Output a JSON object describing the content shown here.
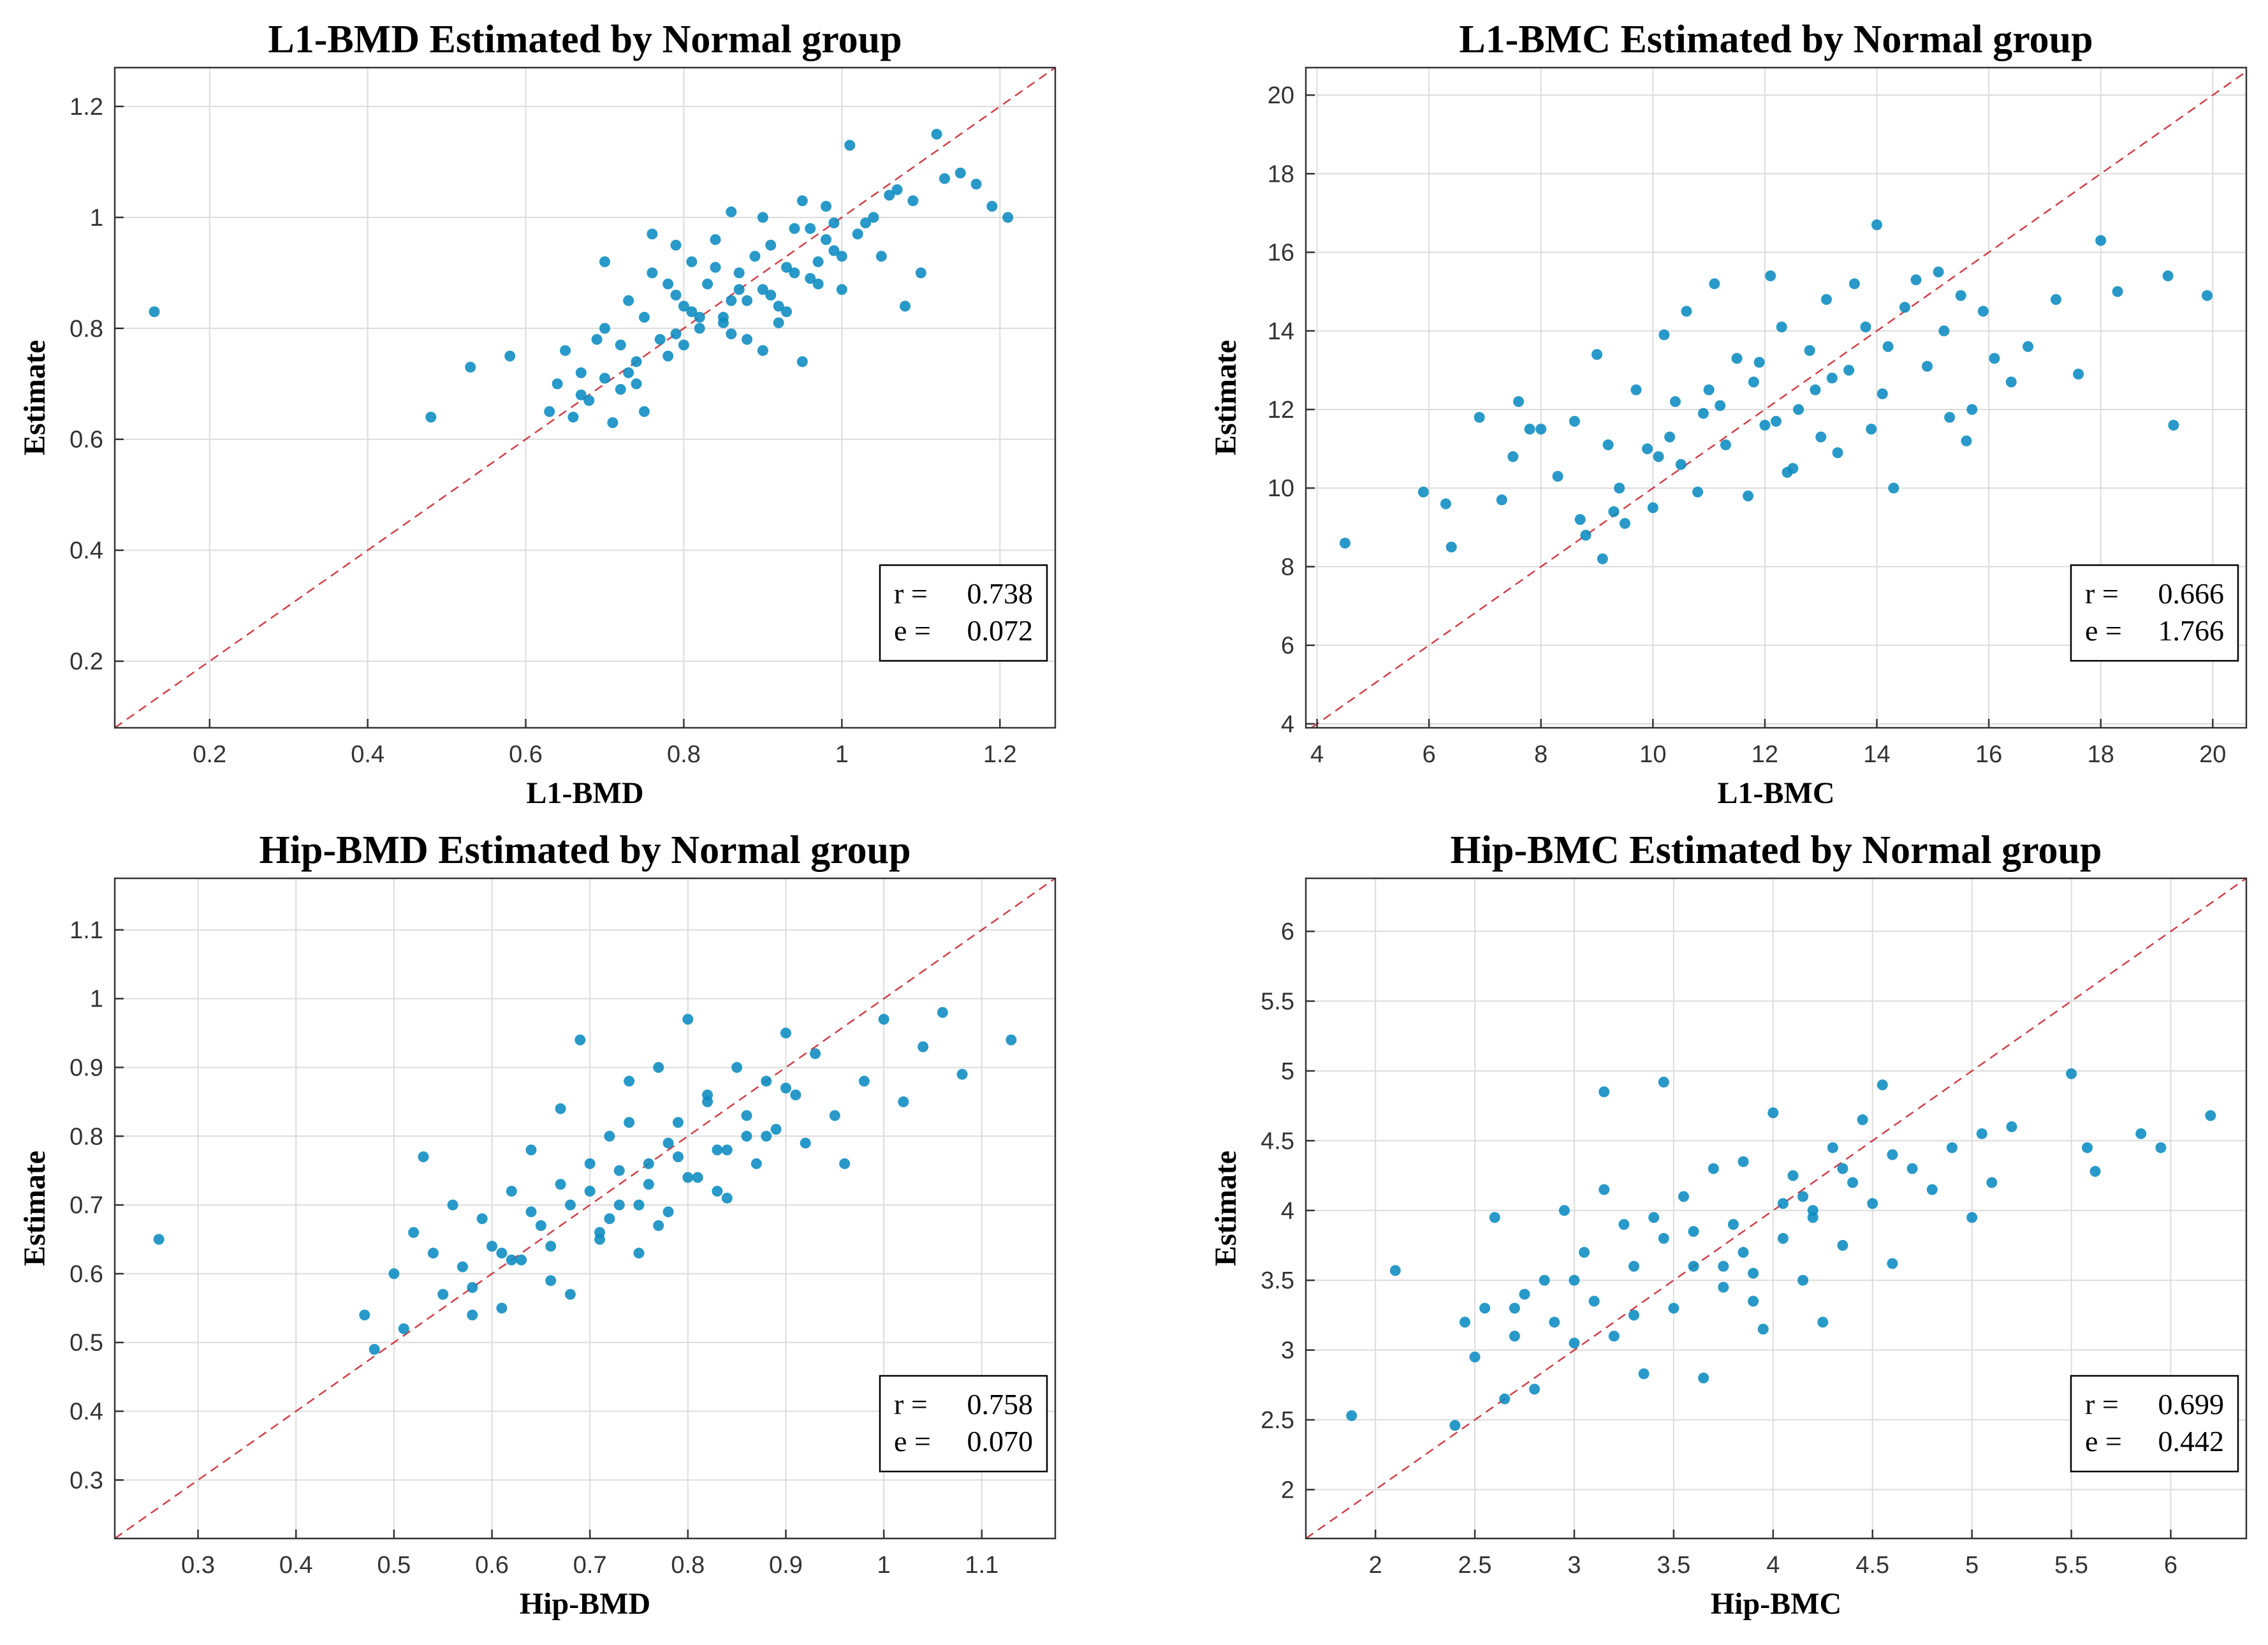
{
  "colors": {
    "point": "#0a8bc0",
    "diagonal": "#d0404a",
    "grid": "#dcdcdc",
    "axis": "#333333"
  },
  "chart_data": [
    {
      "type": "scatter",
      "title": "L1-BMD Estimated by Normal group",
      "xlabel": "L1-BMD",
      "ylabel": "Estimate",
      "xlim": [
        0.08,
        1.27
      ],
      "ylim": [
        0.08,
        1.27
      ],
      "xticks": [
        0.2,
        0.4,
        0.6,
        0.8,
        1,
        1.2
      ],
      "yticks": [
        0.2,
        0.4,
        0.6,
        0.8,
        1,
        1.2
      ],
      "xtick_labels": [
        "0.2",
        "0.4",
        "0.6",
        "0.8",
        "1",
        "1.2"
      ],
      "ytick_labels": [
        "0.2",
        "0.4",
        "0.6",
        "0.8",
        "1",
        "1.2"
      ],
      "grid": true,
      "reference_line": "y = x",
      "stats": {
        "r_label": "r =",
        "r": "0.738",
        "e_label": "e =",
        "e": "0.072"
      },
      "points": {
        "x": [
          0.13,
          0.48,
          0.53,
          0.58,
          0.63,
          0.64,
          0.66,
          0.65,
          0.67,
          0.68,
          0.7,
          0.71,
          0.72,
          0.7,
          0.73,
          0.74,
          0.72,
          0.75,
          0.76,
          0.77,
          0.78,
          0.79,
          0.8,
          0.81,
          0.79,
          0.82,
          0.83,
          0.85,
          0.84,
          0.86,
          0.87,
          0.88,
          0.86,
          0.89,
          0.9,
          0.91,
          0.92,
          0.9,
          0.93,
          0.94,
          0.95,
          0.96,
          0.97,
          0.98,
          0.95,
          0.99,
          1,
          1.01,
          1.02,
          1.03,
          1.05,
          1.06,
          1.08,
          1.1,
          1.12,
          1.15,
          1.17,
          1.19,
          1.21,
          0.76,
          0.8,
          0.84,
          0.88,
          0.92,
          0.96,
          1,
          0.74,
          0.78,
          0.82,
          0.86,
          0.9,
          0.94,
          0.98,
          1.04,
          0.7,
          0.69,
          0.75,
          0.81,
          0.87,
          0.93,
          0.97,
          1.07,
          1.13,
          0.67,
          0.73,
          0.79,
          0.85,
          0.91,
          0.99,
          1.09
        ],
        "y": [
          0.83,
          0.64,
          0.73,
          0.75,
          0.65,
          0.7,
          0.64,
          0.76,
          0.72,
          0.67,
          0.8,
          0.63,
          0.77,
          0.92,
          0.85,
          0.74,
          0.69,
          0.82,
          0.9,
          0.78,
          0.75,
          0.86,
          0.84,
          0.92,
          0.95,
          0.82,
          0.88,
          0.81,
          0.96,
          0.79,
          0.9,
          0.85,
          1.01,
          0.93,
          0.87,
          0.95,
          0.84,
          1,
          0.91,
          0.98,
          0.74,
          0.89,
          0.92,
          1.02,
          1.03,
          0.94,
          0.87,
          1.13,
          0.97,
          0.99,
          0.93,
          1.04,
          0.84,
          0.9,
          1.15,
          1.08,
          1.06,
          1.02,
          1,
          0.97,
          0.77,
          0.91,
          0.78,
          0.81,
          0.98,
          0.93,
          0.7,
          0.88,
          0.8,
          0.85,
          0.76,
          0.9,
          0.96,
          1,
          0.71,
          0.78,
          0.65,
          0.83,
          0.87,
          0.83,
          0.88,
          1.05,
          1.07,
          0.68,
          0.72,
          0.79,
          0.82,
          0.86,
          0.99,
          1.03
        ]
      }
    },
    {
      "type": "scatter",
      "title": "L1-BMC Estimated by Normal group",
      "xlabel": "L1-BMC",
      "ylabel": "Estimate",
      "xlim": [
        3.8,
        20.6
      ],
      "ylim": [
        3.9,
        20.7
      ],
      "xticks": [
        4,
        6,
        8,
        10,
        12,
        14,
        16,
        18,
        20
      ],
      "yticks": [
        4,
        6,
        8,
        10,
        12,
        14,
        16,
        18,
        20
      ],
      "xtick_labels": [
        "4",
        "6",
        "8",
        "10",
        "12",
        "14",
        "16",
        "18",
        "20"
      ],
      "ytick_labels": [
        "4",
        "6",
        "8",
        "10",
        "12",
        "14",
        "16",
        "18",
        "20"
      ],
      "grid": true,
      "reference_line": "y = x",
      "stats": {
        "r_label": "r =",
        "r": "0.666",
        "e_label": "e =",
        "e": "1.766"
      },
      "points": {
        "x": [
          4.5,
          5.9,
          6.3,
          6.4,
          6.9,
          7.3,
          7.5,
          7.6,
          7.8,
          8,
          8.3,
          8.6,
          8.8,
          9,
          9.1,
          9.2,
          9.4,
          9.5,
          9.7,
          9.9,
          10,
          10.2,
          10.3,
          10.5,
          10.6,
          10.8,
          11,
          11.1,
          11.3,
          11.5,
          11.7,
          11.8,
          12,
          12.1,
          12.3,
          12.4,
          12.6,
          12.8,
          13,
          13.1,
          13.3,
          13.5,
          13.6,
          13.8,
          14,
          14.1,
          14.3,
          14.5,
          14.7,
          14.9,
          15.1,
          15.3,
          15.5,
          15.7,
          15.9,
          16.1,
          16.4,
          16.7,
          17.2,
          17.6,
          18,
          18.3,
          19.2,
          19.3,
          19.9,
          9.3,
          10.1,
          11.2,
          12.2,
          13.2,
          14.2,
          15.2,
          8.7,
          10.9,
          12.9,
          13.9,
          15.6,
          11.9,
          10.4,
          12.5
        ],
        "y": [
          8.6,
          9.9,
          9.6,
          8.5,
          11.8,
          9.7,
          10.8,
          12.2,
          11.5,
          11.5,
          10.3,
          11.7,
          8.8,
          13.4,
          8.2,
          11.1,
          10,
          9.1,
          12.5,
          11,
          9.5,
          13.9,
          11.3,
          10.6,
          14.5,
          9.9,
          12.5,
          15.2,
          11.1,
          13.3,
          9.8,
          12.7,
          11.6,
          15.4,
          14.1,
          10.4,
          12,
          13.5,
          11.3,
          14.8,
          10.9,
          13,
          15.2,
          14.1,
          16.7,
          12.4,
          10,
          14.6,
          15.3,
          13.1,
          15.5,
          11.8,
          14.9,
          12,
          14.5,
          13.3,
          12.7,
          13.6,
          14.8,
          12.9,
          16.3,
          15,
          15.4,
          11.6,
          14.9,
          9.4,
          10.8,
          12.1,
          11.7,
          12.8,
          13.6,
          14,
          9.2,
          11.9,
          12.5,
          11.5,
          11.2,
          13.2,
          12.2,
          10.5
        ]
      }
    },
    {
      "type": "scatter",
      "title": "Hip-BMD Estimated by Normal group",
      "xlabel": "Hip-BMD",
      "ylabel": "Estimate",
      "xlim": [
        0.215,
        1.175
      ],
      "ylim": [
        0.215,
        1.175
      ],
      "xticks": [
        0.3,
        0.4,
        0.5,
        0.6,
        0.7,
        0.8,
        0.9,
        1,
        1.1
      ],
      "yticks": [
        0.3,
        0.4,
        0.5,
        0.6,
        0.7,
        0.8,
        0.9,
        1,
        1.1
      ],
      "xtick_labels": [
        "0.3",
        "0.4",
        "0.5",
        "0.6",
        "0.7",
        "0.8",
        "0.9",
        "1",
        "1.1"
      ],
      "ytick_labels": [
        "0.3",
        "0.4",
        "0.5",
        "0.6",
        "0.7",
        "0.8",
        "0.9",
        "1",
        "1.1"
      ],
      "grid": true,
      "reference_line": "y = x",
      "stats": {
        "r_label": "r =",
        "r": "0.758",
        "e_label": "e =",
        "e": "0.070"
      },
      "points": {
        "x": [
          0.26,
          0.47,
          0.48,
          0.5,
          0.51,
          0.52,
          0.53,
          0.54,
          0.55,
          0.56,
          0.57,
          0.58,
          0.59,
          0.6,
          0.61,
          0.62,
          0.63,
          0.64,
          0.65,
          0.66,
          0.67,
          0.68,
          0.69,
          0.7,
          0.71,
          0.72,
          0.73,
          0.74,
          0.75,
          0.76,
          0.77,
          0.78,
          0.79,
          0.8,
          0.81,
          0.82,
          0.83,
          0.84,
          0.85,
          0.86,
          0.87,
          0.88,
          0.89,
          0.9,
          0.91,
          0.92,
          0.93,
          0.95,
          0.96,
          0.98,
          1,
          1.02,
          1.04,
          1.06,
          1.08,
          1.13,
          0.64,
          0.66,
          0.7,
          0.72,
          0.74,
          0.76,
          0.78,
          0.82,
          0.86,
          0.9,
          0.62,
          0.68,
          0.73,
          0.77,
          0.8,
          0.84,
          0.58,
          0.61,
          0.67,
          0.71,
          0.75,
          0.79,
          0.83,
          0.88
        ],
        "y": [
          0.65,
          0.54,
          0.49,
          0.6,
          0.52,
          0.66,
          0.77,
          0.63,
          0.57,
          0.7,
          0.61,
          0.54,
          0.68,
          0.64,
          0.55,
          0.72,
          0.62,
          0.78,
          0.67,
          0.59,
          0.84,
          0.57,
          0.94,
          0.72,
          0.65,
          0.8,
          0.7,
          0.88,
          0.63,
          0.76,
          0.9,
          0.69,
          0.82,
          0.97,
          0.74,
          0.86,
          0.78,
          0.71,
          0.9,
          0.83,
          0.76,
          0.88,
          0.81,
          0.95,
          0.86,
          0.79,
          0.92,
          0.83,
          0.76,
          0.88,
          0.97,
          0.85,
          0.93,
          0.98,
          0.89,
          0.94,
          0.69,
          0.64,
          0.76,
          0.68,
          0.82,
          0.73,
          0.79,
          0.85,
          0.8,
          0.87,
          0.62,
          0.7,
          0.75,
          0.67,
          0.74,
          0.78,
          0.58,
          0.63,
          0.73,
          0.66,
          0.7,
          0.77,
          0.72,
          0.8
        ]
      }
    },
    {
      "type": "scatter",
      "title": "Hip-BMC Estimated by Normal group",
      "xlabel": "Hip-BMC",
      "ylabel": "Estimate",
      "xlim": [
        1.65,
        6.38
      ],
      "ylim": [
        1.65,
        6.38
      ],
      "xticks": [
        2,
        2.5,
        3,
        3.5,
        4,
        4.5,
        5,
        5.5,
        6
      ],
      "yticks": [
        2,
        2.5,
        3,
        3.5,
        4,
        4.5,
        5,
        5.5,
        6
      ],
      "xtick_labels": [
        "2",
        "2.5",
        "3",
        "3.5",
        "4",
        "4.5",
        "5",
        "5.5",
        "6"
      ],
      "ytick_labels": [
        "2",
        "2.5",
        "3",
        "3.5",
        "4",
        "4.5",
        "5",
        "5.5",
        "6"
      ],
      "grid": true,
      "reference_line": "y = x",
      "stats": {
        "r_label": "r =",
        "r": "0.699",
        "e_label": "e =",
        "e": "0.442"
      },
      "points": {
        "x": [
          1.88,
          2.1,
          2.4,
          2.45,
          2.5,
          2.55,
          2.6,
          2.65,
          2.7,
          2.75,
          2.8,
          2.85,
          2.9,
          2.95,
          3,
          3.05,
          3.1,
          3.15,
          3.2,
          3.25,
          3.3,
          3.35,
          3.4,
          3.45,
          3.5,
          3.55,
          3.6,
          3.65,
          3.7,
          3.75,
          3.8,
          3.85,
          3.9,
          3.95,
          4,
          4.05,
          4.1,
          4.15,
          4.2,
          4.25,
          4.3,
          4.35,
          4.4,
          4.45,
          4.5,
          4.55,
          4.6,
          4.7,
          4.8,
          4.9,
          5,
          5.05,
          5.1,
          5.2,
          5.5,
          5.58,
          5.62,
          5.85,
          5.95,
          6.2,
          3.15,
          3.45,
          3.75,
          4.05,
          4.35,
          3,
          3.3,
          3.6,
          3.9,
          4.2,
          2.7,
          3.85,
          4.15,
          4.6
        ],
        "y": [
          2.53,
          3.57,
          2.46,
          3.2,
          2.95,
          3.3,
          3.95,
          2.65,
          3.1,
          3.4,
          2.72,
          3.5,
          3.2,
          4,
          3.05,
          3.7,
          3.35,
          4.85,
          3.1,
          3.9,
          3.6,
          2.83,
          3.95,
          4.92,
          3.3,
          4.1,
          3.6,
          2.8,
          4.3,
          3.45,
          3.9,
          4.35,
          3.55,
          3.15,
          4.7,
          3.8,
          4.25,
          3.5,
          4,
          3.2,
          4.45,
          3.75,
          4.2,
          4.65,
          4.05,
          4.9,
          3.62,
          4.3,
          4.15,
          4.45,
          3.95,
          4.55,
          4.2,
          4.6,
          4.98,
          4.45,
          4.28,
          4.55,
          4.45,
          4.68,
          4.15,
          3.8,
          3.6,
          4.05,
          4.3,
          3.5,
          3.25,
          3.85,
          3.35,
          3.95,
          3.3,
          3.7,
          4.1,
          4.4
        ]
      }
    }
  ]
}
